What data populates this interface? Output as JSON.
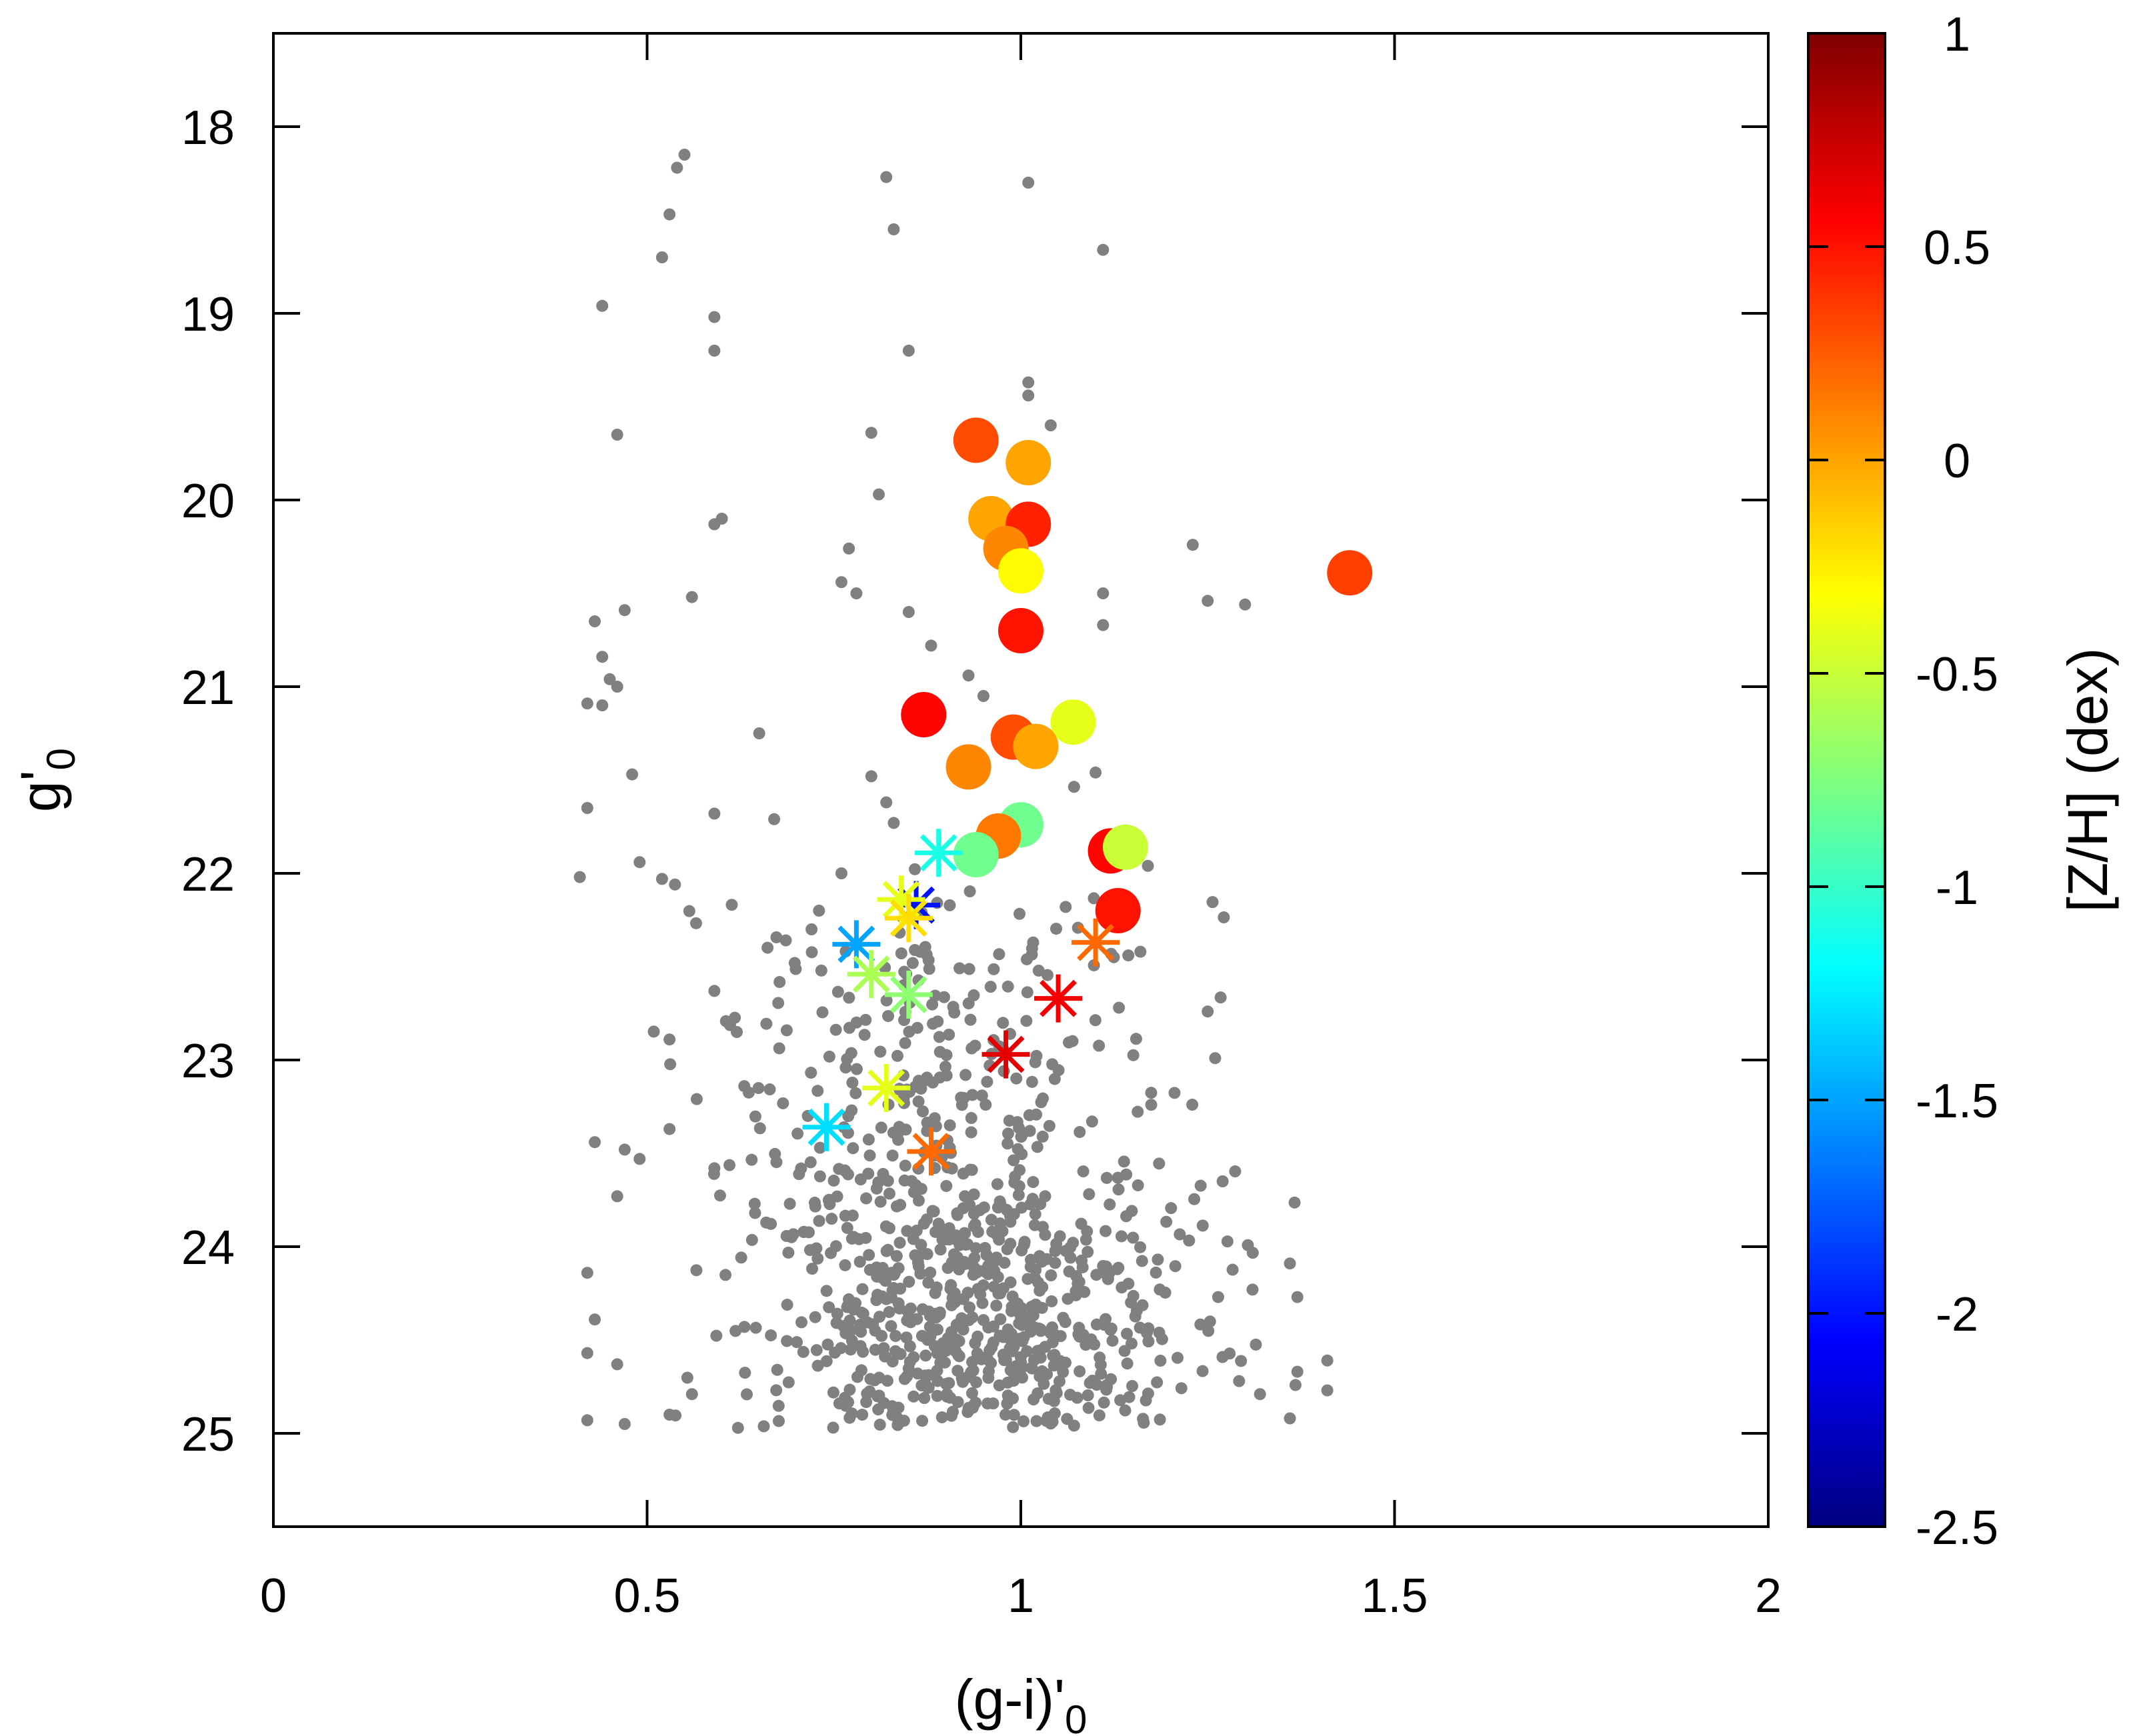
{
  "chart_data": {
    "type": "scatter",
    "xlabel": "(g-i)'",
    "xlabel_sub": "0",
    "ylabel": "g'",
    "ylabel_sub": "0",
    "xlim": [
      0,
      2
    ],
    "ylim": [
      17.5,
      25.5
    ],
    "y_inverted": true,
    "x_ticks": [
      0,
      0.5,
      1,
      1.5,
      2
    ],
    "x_tick_labels": [
      "0",
      "0.5",
      "1",
      "1.5",
      "2"
    ],
    "y_ticks": [
      18,
      19,
      20,
      21,
      22,
      23,
      24,
      25
    ],
    "y_tick_labels": [
      "18",
      "19",
      "20",
      "21",
      "22",
      "23",
      "24",
      "25"
    ],
    "colorbar": {
      "label": "[Z/H] (dex)",
      "range": [
        -2.5,
        1
      ],
      "ticks": [
        1,
        0.5,
        0,
        -0.5,
        -1,
        -1.5,
        -2,
        -2.5
      ],
      "tick_labels": [
        "1",
        "0.5",
        "0",
        "-0.5",
        "-1",
        "-1.5",
        "-2",
        "-2.5"
      ],
      "colormap": [
        "#00007f",
        "#0000ff",
        "#007fff",
        "#00ffff",
        "#7fff7f",
        "#ffff00",
        "#ff7f00",
        "#ff0000",
        "#7f0000"
      ]
    },
    "background_color": "#808080",
    "series": [
      {
        "name": "circles",
        "marker": "circle",
        "points": [
          {
            "x": 0.94,
            "y": 19.68,
            "z": 0.3
          },
          {
            "x": 1.01,
            "y": 19.8,
            "z": 0.0
          },
          {
            "x": 0.96,
            "y": 20.1,
            "z": 0.0
          },
          {
            "x": 1.01,
            "y": 20.13,
            "z": 0.45
          },
          {
            "x": 0.98,
            "y": 20.26,
            "z": 0.1
          },
          {
            "x": 1.0,
            "y": 20.38,
            "z": -0.3
          },
          {
            "x": 1.44,
            "y": 20.39,
            "z": 0.35
          },
          {
            "x": 1.0,
            "y": 20.7,
            "z": 0.5
          },
          {
            "x": 0.87,
            "y": 21.15,
            "z": 0.55
          },
          {
            "x": 1.07,
            "y": 21.19,
            "z": -0.4
          },
          {
            "x": 0.99,
            "y": 21.27,
            "z": 0.3
          },
          {
            "x": 1.02,
            "y": 21.32,
            "z": 0.0
          },
          {
            "x": 0.93,
            "y": 21.43,
            "z": 0.1
          },
          {
            "x": 1.0,
            "y": 21.74,
            "z": -0.8
          },
          {
            "x": 0.97,
            "y": 21.8,
            "z": 0.15
          },
          {
            "x": 0.94,
            "y": 21.9,
            "z": -0.8
          },
          {
            "x": 1.12,
            "y": 21.88,
            "z": 0.55
          },
          {
            "x": 1.14,
            "y": 21.86,
            "z": -0.5
          },
          {
            "x": 1.13,
            "y": 22.2,
            "z": 0.5
          }
        ]
      },
      {
        "name": "asterisks",
        "marker": "asterisk",
        "points": [
          {
            "x": 0.89,
            "y": 21.89,
            "z": -1.1
          },
          {
            "x": 0.86,
            "y": 22.17,
            "z": -2.0
          },
          {
            "x": 0.84,
            "y": 22.14,
            "z": -0.4
          },
          {
            "x": 0.85,
            "y": 22.24,
            "z": -0.2
          },
          {
            "x": 0.78,
            "y": 22.38,
            "z": -1.5
          },
          {
            "x": 1.1,
            "y": 22.37,
            "z": 0.2
          },
          {
            "x": 0.8,
            "y": 22.54,
            "z": -0.6
          },
          {
            "x": 0.85,
            "y": 22.65,
            "z": -0.7
          },
          {
            "x": 1.05,
            "y": 22.67,
            "z": 0.6
          },
          {
            "x": 0.98,
            "y": 22.97,
            "z": 0.65
          },
          {
            "x": 0.82,
            "y": 23.15,
            "z": -0.4
          },
          {
            "x": 0.74,
            "y": 23.36,
            "z": -1.3
          },
          {
            "x": 0.88,
            "y": 23.49,
            "z": 0.2
          }
        ]
      },
      {
        "name": "background",
        "marker": "dot",
        "points": [
          {
            "x": 0.55,
            "y": 18.15
          },
          {
            "x": 0.54,
            "y": 18.22
          },
          {
            "x": 0.53,
            "y": 18.47
          },
          {
            "x": 0.52,
            "y": 18.7
          },
          {
            "x": 0.44,
            "y": 18.96
          },
          {
            "x": 0.59,
            "y": 19.02
          },
          {
            "x": 0.59,
            "y": 19.2
          },
          {
            "x": 0.82,
            "y": 18.27
          },
          {
            "x": 0.83,
            "y": 18.55
          },
          {
            "x": 1.01,
            "y": 18.3
          },
          {
            "x": 1.11,
            "y": 18.66
          },
          {
            "x": 0.85,
            "y": 19.2
          },
          {
            "x": 1.01,
            "y": 19.37
          },
          {
            "x": 1.01,
            "y": 19.44
          },
          {
            "x": 1.04,
            "y": 19.6
          },
          {
            "x": 0.46,
            "y": 19.65
          },
          {
            "x": 0.8,
            "y": 19.64
          },
          {
            "x": 0.81,
            "y": 19.97
          },
          {
            "x": 0.6,
            "y": 20.1
          },
          {
            "x": 0.59,
            "y": 20.13
          },
          {
            "x": 0.77,
            "y": 20.26
          },
          {
            "x": 1.23,
            "y": 20.24
          },
          {
            "x": 0.76,
            "y": 20.44
          },
          {
            "x": 0.78,
            "y": 20.5
          },
          {
            "x": 0.56,
            "y": 20.52
          },
          {
            "x": 1.25,
            "y": 20.54
          },
          {
            "x": 1.3,
            "y": 20.56
          },
          {
            "x": 1.11,
            "y": 20.5
          },
          {
            "x": 1.11,
            "y": 20.67
          },
          {
            "x": 0.47,
            "y": 20.59
          },
          {
            "x": 0.43,
            "y": 20.65
          },
          {
            "x": 0.85,
            "y": 20.6
          },
          {
            "x": 0.88,
            "y": 20.78
          },
          {
            "x": 0.44,
            "y": 20.84
          },
          {
            "x": 0.45,
            "y": 20.96
          },
          {
            "x": 0.46,
            "y": 21.0
          },
          {
            "x": 0.42,
            "y": 21.09
          },
          {
            "x": 0.44,
            "y": 21.1
          },
          {
            "x": 0.93,
            "y": 20.94
          },
          {
            "x": 0.95,
            "y": 21.05
          },
          {
            "x": 0.65,
            "y": 21.25
          },
          {
            "x": 0.48,
            "y": 21.47
          },
          {
            "x": 0.67,
            "y": 21.71
          },
          {
            "x": 0.59,
            "y": 21.68
          },
          {
            "x": 0.42,
            "y": 21.65
          },
          {
            "x": 0.49,
            "y": 21.94
          },
          {
            "x": 0.52,
            "y": 22.03
          },
          {
            "x": 0.41,
            "y": 22.02
          },
          {
            "x": 1.1,
            "y": 21.46
          },
          {
            "x": 1.17,
            "y": 21.96
          },
          {
            "x": 0.8,
            "y": 21.48
          },
          {
            "x": 0.82,
            "y": 21.62
          },
          {
            "x": 0.83,
            "y": 21.73
          },
          {
            "x": 0.76,
            "y": 22.0
          },
          {
            "x": 0.73,
            "y": 22.2
          },
          {
            "x": 0.72,
            "y": 22.3
          },
          {
            "x": 1.06,
            "y": 22.18
          },
          {
            "x": 1.16,
            "y": 22.42
          },
          {
            "x": 0.59,
            "y": 22.63
          },
          {
            "x": 0.62,
            "y": 22.85
          },
          {
            "x": 0.53,
            "y": 22.89
          },
          {
            "x": 0.63,
            "y": 23.14
          },
          {
            "x": 0.53,
            "y": 23.37
          },
          {
            "x": 0.43,
            "y": 23.44
          },
          {
            "x": 0.47,
            "y": 23.48
          },
          {
            "x": 0.49,
            "y": 23.53
          },
          {
            "x": 0.46,
            "y": 23.73
          },
          {
            "x": 0.59,
            "y": 23.58
          },
          {
            "x": 1.25,
            "y": 22.74
          },
          {
            "x": 1.26,
            "y": 22.99
          },
          {
            "x": 1.27,
            "y": 23.65
          },
          {
            "x": 1.36,
            "y": 24.09
          },
          {
            "x": 1.31,
            "y": 24.23
          },
          {
            "x": 1.37,
            "y": 24.27
          },
          {
            "x": 1.41,
            "y": 24.61
          },
          {
            "x": 1.41,
            "y": 24.77
          },
          {
            "x": 1.37,
            "y": 24.67
          },
          {
            "x": 1.36,
            "y": 24.92
          },
          {
            "x": 1.32,
            "y": 24.79
          },
          {
            "x": 0.42,
            "y": 24.14
          },
          {
            "x": 0.43,
            "y": 24.39
          },
          {
            "x": 0.42,
            "y": 24.57
          },
          {
            "x": 0.42,
            "y": 24.93
          },
          {
            "x": 0.46,
            "y": 24.63
          },
          {
            "x": 0.47,
            "y": 24.95
          },
          {
            "x": 0.53,
            "y": 24.9
          },
          {
            "x": 0.56,
            "y": 24.79
          }
        ],
        "cluster_fill": [
          {
            "cx": 0.93,
            "cy": 24.5,
            "sx": 0.15,
            "sy": 0.45,
            "n": 650
          },
          {
            "cx": 0.9,
            "cy": 23.5,
            "sx": 0.16,
            "sy": 0.55,
            "n": 260
          },
          {
            "cx": 0.85,
            "cy": 22.7,
            "sx": 0.13,
            "sy": 0.4,
            "n": 90
          }
        ]
      }
    ]
  }
}
